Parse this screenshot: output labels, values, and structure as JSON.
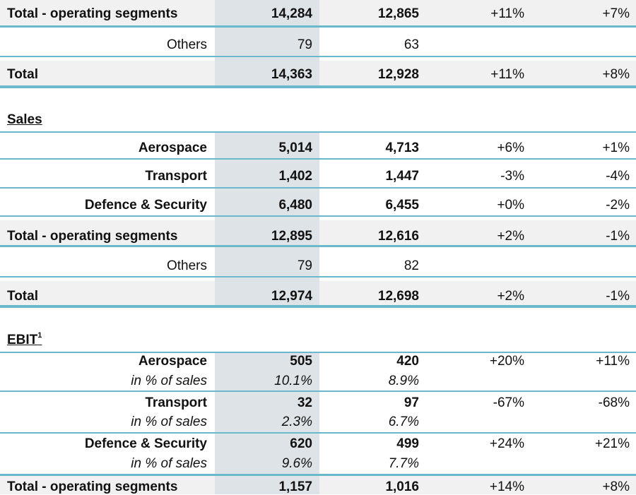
{
  "orders_partial": {
    "total_operating": {
      "label": "Total - operating segments",
      "v1": "14,284",
      "v2": "12,865",
      "c1": "+11%",
      "c2": "+7%"
    },
    "others": {
      "label": "Others",
      "v1": "79",
      "v2": "63"
    },
    "total": {
      "label": "Total",
      "v1": "14,363",
      "v2": "12,928",
      "c1": "+11%",
      "c2": "+8%"
    }
  },
  "sales": {
    "title": "Sales",
    "aerospace": {
      "label": "Aerospace",
      "v1": "5,014",
      "v2": "4,713",
      "c1": "+6%",
      "c2": "+1%"
    },
    "transport": {
      "label": "Transport",
      "v1": "1,402",
      "v2": "1,447",
      "c1": "-3%",
      "c2": "-4%"
    },
    "defence": {
      "label": "Defence & Security",
      "v1": "6,480",
      "v2": "6,455",
      "c1": "+0%",
      "c2": "-2%"
    },
    "total_operating": {
      "label": "Total - operating segments",
      "v1": "12,895",
      "v2": "12,616",
      "c1": "+2%",
      "c2": "-1%"
    },
    "others": {
      "label": "Others",
      "v1": "79",
      "v2": "82"
    },
    "total": {
      "label": "Total",
      "v1": "12,974",
      "v2": "12,698",
      "c1": "+2%",
      "c2": "-1%"
    }
  },
  "ebit": {
    "title": "EBIT",
    "footnote": "1",
    "pct_label": "in % of sales",
    "aerospace": {
      "label": "Aerospace",
      "v1": "505",
      "v2": "420",
      "c1": "+20%",
      "c2": "+11%",
      "p1": "10.1%",
      "p2": "8.9%"
    },
    "transport": {
      "label": "Transport",
      "v1": "32",
      "v2": "97",
      "c1": "-67%",
      "c2": "-68%",
      "p1": "2.3%",
      "p2": "6.7%"
    },
    "defence": {
      "label": "Defence & Security",
      "v1": "620",
      "v2": "499",
      "c1": "+24%",
      "c2": "+21%",
      "p1": "9.6%",
      "p2": "7.7%"
    },
    "total_operating": {
      "label": "Total - operating segments",
      "v1": "1,157",
      "v2": "1,016",
      "c1": "+14%",
      "c2": "+8%"
    }
  }
}
